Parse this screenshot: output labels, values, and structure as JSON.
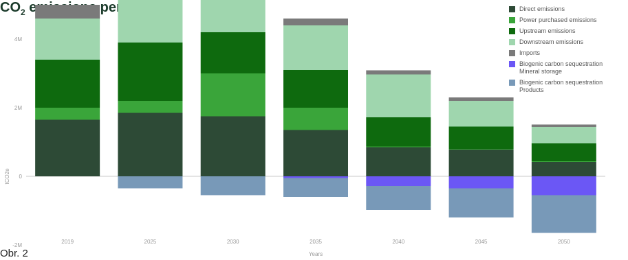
{
  "caption": "Obr. 2",
  "chart_data": {
    "type": "bar",
    "stacked": true,
    "title_main": "CO",
    "title_sub": "2",
    "title_rest": " emissions per scope",
    "xlabel": "Years",
    "ylabel": "tCO2e",
    "categories": [
      "2019",
      "2025",
      "2030",
      "2035",
      "2040",
      "2045",
      "2050"
    ],
    "yticks": [
      {
        "value": -2,
        "label": "-2M"
      },
      {
        "value": 0,
        "label": "0"
      },
      {
        "value": 2,
        "label": "2M"
      },
      {
        "value": 4,
        "label": "4M"
      }
    ],
    "ylim": [
      -2.8,
      6.5
    ],
    "legend_position": "top-right",
    "series": [
      {
        "name": "Direct emissions",
        "color": "#2d4a36",
        "values": [
          1.65,
          1.85,
          1.75,
          1.35,
          0.85,
          0.78,
          0.42
        ]
      },
      {
        "name": "Power purchased emissions",
        "color": "#3aa53a",
        "values": [
          0.35,
          0.35,
          1.25,
          0.65,
          0.02,
          0.02,
          0.02
        ]
      },
      {
        "name": "Upstream emissions",
        "color": "#0e6a0e",
        "values": [
          1.4,
          1.7,
          1.2,
          1.1,
          0.85,
          0.65,
          0.52
        ]
      },
      {
        "name": "Downstream emissions",
        "color": "#9fd6ae",
        "values": [
          1.2,
          1.3,
          1.45,
          1.3,
          1.25,
          0.75,
          0.48
        ]
      },
      {
        "name": "Imports",
        "color": "#7a7a7a",
        "values": [
          0.4,
          0.42,
          0.22,
          0.2,
          0.12,
          0.1,
          0.07
        ]
      },
      {
        "name": "Biogenic carbon sequestration\nMineral storage",
        "color": "#6b57f5",
        "values": [
          0,
          0,
          0,
          -0.05,
          -0.28,
          -0.35,
          -0.55
        ]
      },
      {
        "name": "Biogenic carbon sequestration\nProducts",
        "color": "#7899b8",
        "values": [
          0,
          -0.35,
          -0.55,
          -0.55,
          -0.7,
          -0.85,
          -1.1
        ]
      }
    ]
  }
}
